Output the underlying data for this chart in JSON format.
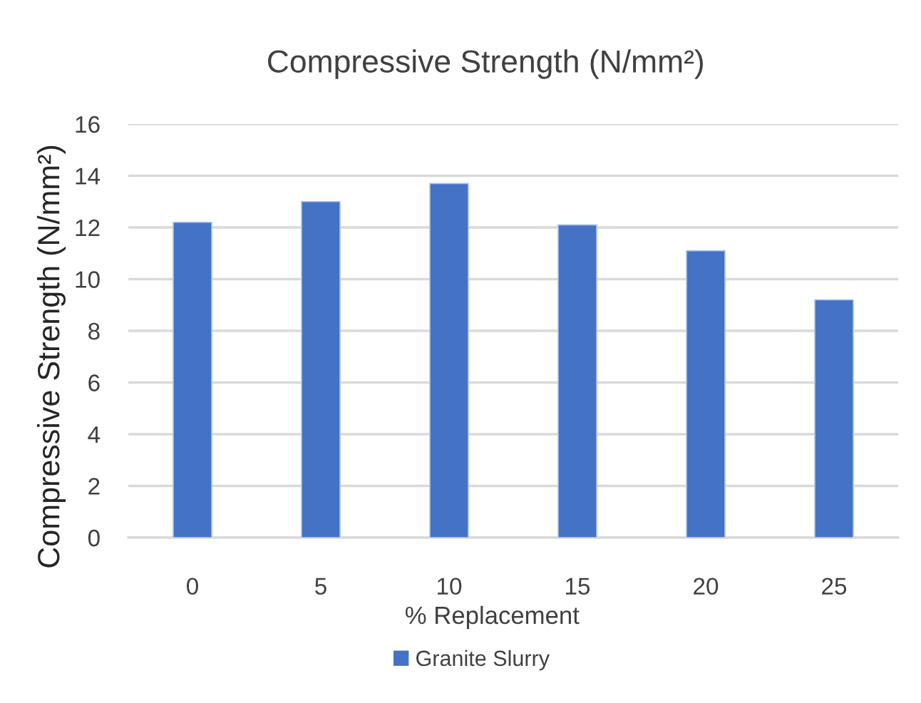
{
  "chart_data": {
    "type": "bar",
    "title": "Compressive Strength (N/mm²)",
    "xlabel": "% Replacement",
    "ylabel": "Compressive Strength (N/mm²)",
    "categories": [
      "0",
      "5",
      "10",
      "15",
      "20",
      "25"
    ],
    "series": [
      {
        "name": "Granite Slurry",
        "color": "#4472c4",
        "values": [
          12.2,
          13.0,
          13.7,
          12.1,
          11.1,
          9.2
        ]
      }
    ],
    "ylim": [
      0,
      16
    ],
    "yticks": [
      0,
      2,
      4,
      6,
      8,
      10,
      12,
      14,
      16
    ],
    "grid": "y",
    "legend": "bottom"
  }
}
